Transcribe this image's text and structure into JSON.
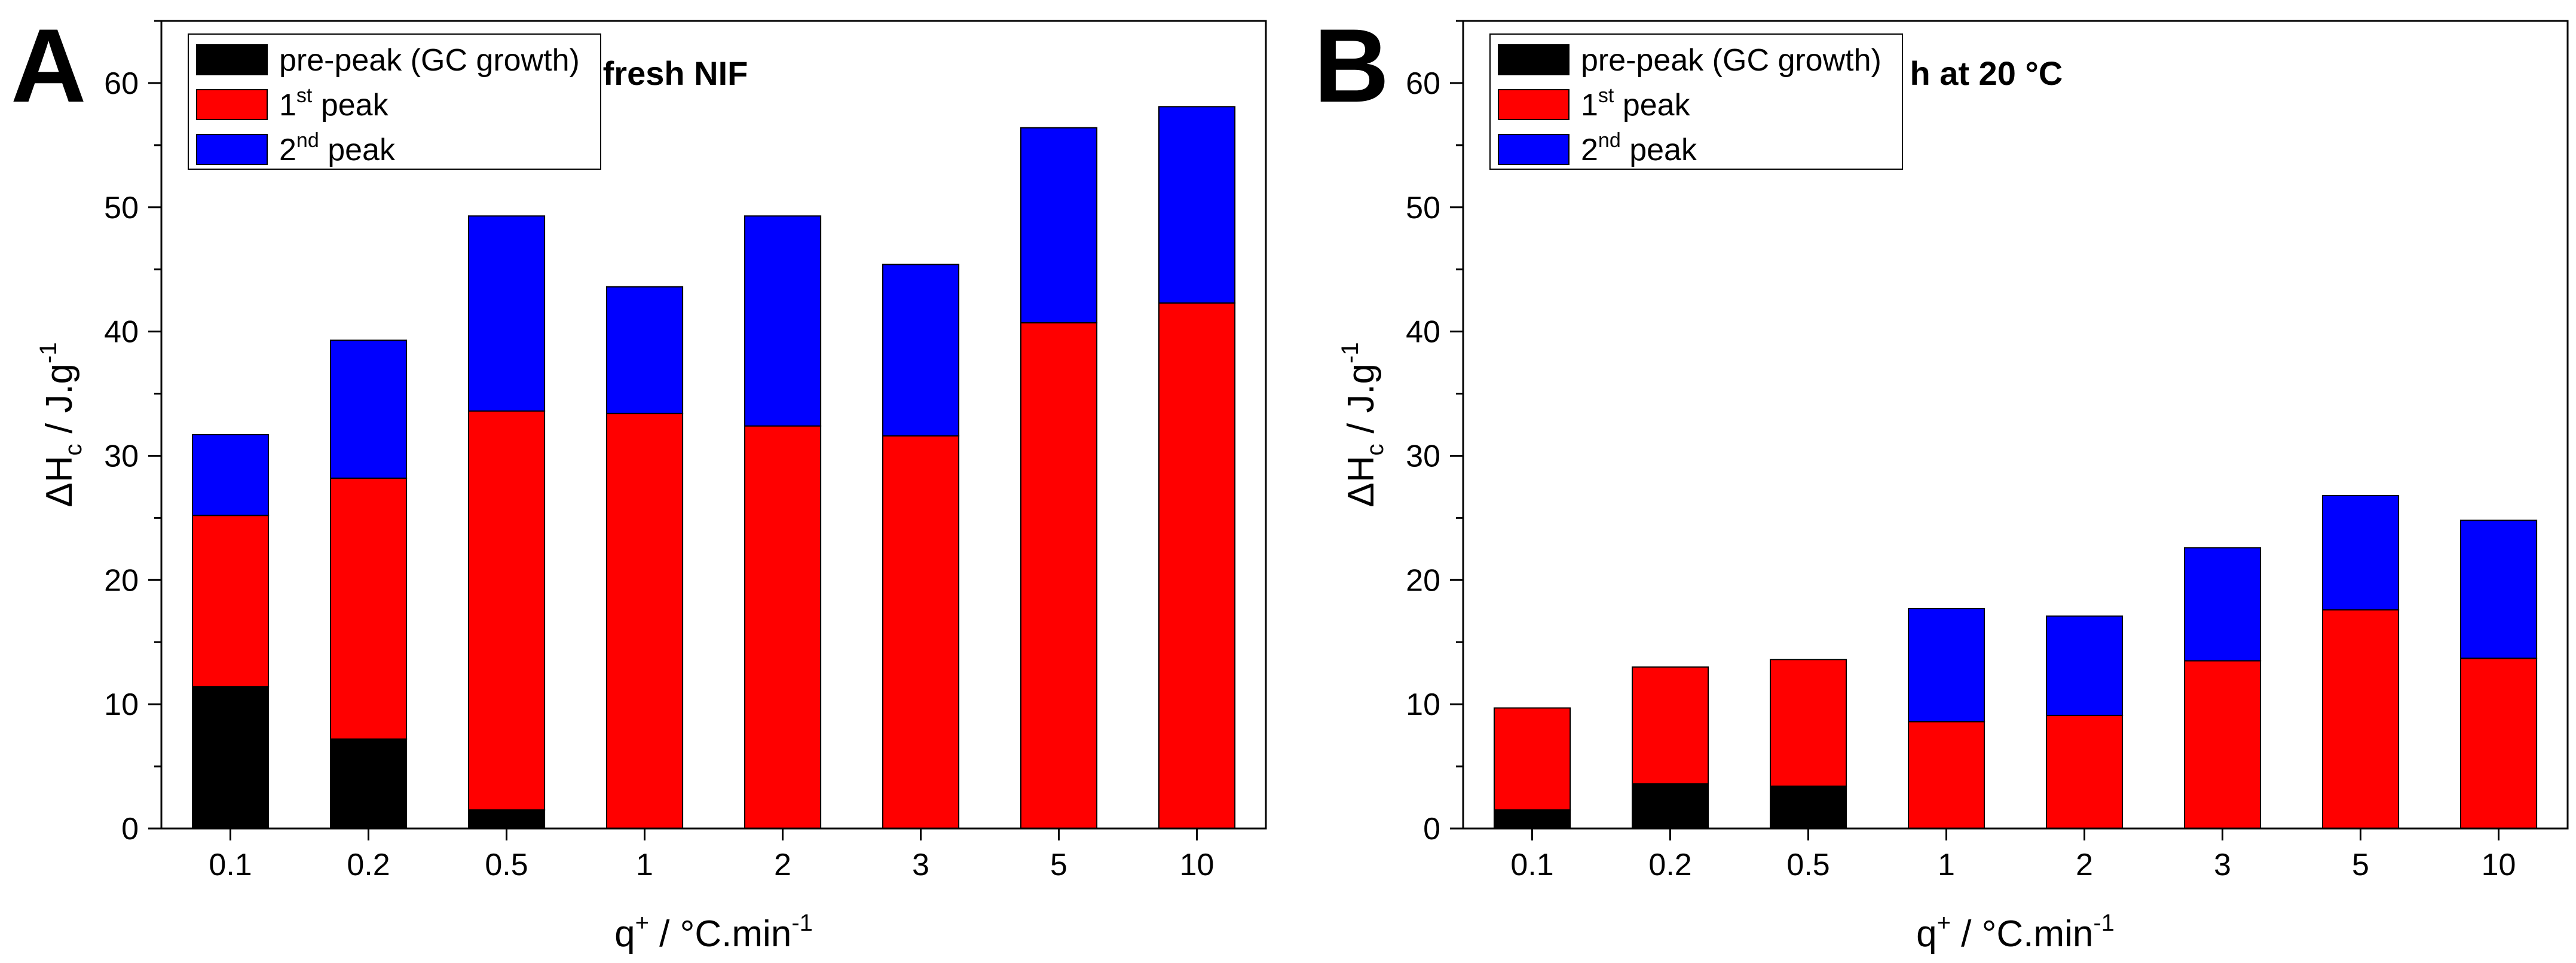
{
  "chart_data": [
    {
      "type": "bar",
      "stacked": true,
      "panel_label": "A",
      "title": "fresh NIF",
      "xlabel": {
        "main": "q",
        "sup": "+",
        "rest": "   /   °C.min",
        "rest_sup": "-1"
      },
      "ylabel": {
        "main": "ΔH",
        "sub": "c",
        "rest": "   /   J.g",
        "rest_sup": "-1"
      },
      "categories": [
        "0.1",
        "0.2",
        "0.5",
        "1",
        "2",
        "3",
        "5",
        "10"
      ],
      "ylim": [
        0,
        65
      ],
      "yticks": [
        0,
        10,
        20,
        30,
        40,
        50,
        60
      ],
      "grid": false,
      "legend_position": "top-left",
      "series": [
        {
          "name": "pre-peak (GC growth)",
          "color": "#000000",
          "values": [
            11.4,
            7.2,
            1.5,
            0,
            0,
            0,
            0,
            0
          ]
        },
        {
          "name": "1",
          "name_sup": "st",
          "name_rest": " peak",
          "color": "#ff0000",
          "values": [
            13.8,
            21.0,
            32.1,
            33.4,
            32.4,
            31.6,
            40.7,
            42.3
          ]
        },
        {
          "name": "2",
          "name_sup": "nd",
          "name_rest": " peak",
          "color": "#0000ff",
          "values": [
            6.5,
            11.1,
            15.7,
            10.2,
            16.9,
            13.8,
            15.7,
            15.8
          ]
        }
      ]
    },
    {
      "type": "bar",
      "stacked": true,
      "panel_label": "B",
      "title": "7 h at 20 °C",
      "xlabel": {
        "main": "q",
        "sup": "+",
        "rest": "   /   °C.min",
        "rest_sup": "-1"
      },
      "ylabel": {
        "main": "ΔH",
        "sub": "c",
        "rest": "   /   J.g",
        "rest_sup": "-1"
      },
      "categories": [
        "0.1",
        "0.2",
        "0.5",
        "1",
        "2",
        "3",
        "5",
        "10"
      ],
      "ylim": [
        0,
        65
      ],
      "yticks": [
        0,
        10,
        20,
        30,
        40,
        50,
        60
      ],
      "grid": false,
      "legend_position": "top-left",
      "series": [
        {
          "name": "pre-peak (GC growth)",
          "color": "#000000",
          "values": [
            1.5,
            3.6,
            3.4,
            0,
            0,
            0,
            0,
            0
          ]
        },
        {
          "name": "1",
          "name_sup": "st",
          "name_rest": " peak",
          "color": "#ff0000",
          "values": [
            8.2,
            9.4,
            10.2,
            8.6,
            9.1,
            13.5,
            17.6,
            13.7
          ]
        },
        {
          "name": "2",
          "name_sup": "nd",
          "name_rest": " peak",
          "color": "#0000ff",
          "values": [
            0,
            0,
            0,
            9.1,
            8.0,
            9.1,
            9.2,
            11.1
          ]
        }
      ]
    }
  ]
}
